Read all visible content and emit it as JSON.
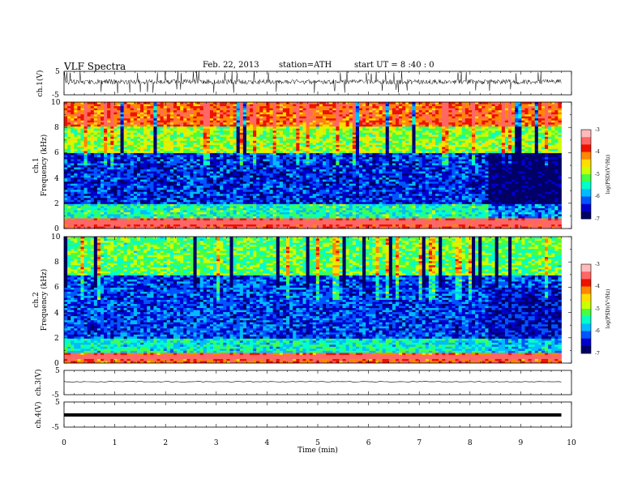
{
  "header": {
    "title": "VLF  Spectra",
    "date": "Feb. 22, 2013",
    "station": "station=ATH",
    "start": "start  UT  =    8  :40 : 0"
  },
  "x_axis": {
    "label": "Time  (min)",
    "range": [
      0,
      10
    ],
    "ticks": [
      "0",
      "1",
      "2",
      "3",
      "4",
      "5",
      "6",
      "7",
      "8",
      "9",
      "10"
    ],
    "data_end": 9.8
  },
  "panels": {
    "ch1_wave": {
      "ylabel": "ch.1(V)",
      "ticks": [
        "5",
        "-5"
      ],
      "range": [
        -5,
        5
      ],
      "trace": "fluctuating waveform near 0 with frequent spikes"
    },
    "ch1_spec": {
      "ylabel_a": "ch.1",
      "ylabel_b": "Frequency  (kHz)",
      "ticks": [
        "0",
        "2",
        "4",
        "6",
        "8",
        "10"
      ],
      "range_khz": [
        0,
        10
      ]
    },
    "ch2_spec": {
      "ylabel_a": "ch.2",
      "ylabel_b": "Frequency  (kHz)",
      "ticks": [
        "0",
        "2",
        "4",
        "6",
        "8",
        "10"
      ],
      "range_khz": [
        0,
        10
      ]
    },
    "ch3_wave": {
      "ylabel": "ch.3(V)",
      "ticks": [
        "5",
        "-5"
      ],
      "range": [
        -5,
        5
      ],
      "trace": "thin line near 0"
    },
    "ch4_wave": {
      "ylabel": "ch.4(V)",
      "ticks": [
        "5",
        "-5"
      ],
      "range": [
        -5,
        5
      ],
      "trace": "thick band near 0"
    }
  },
  "colorbar": {
    "label": "log(PSD)(V²/Hz)",
    "ticks": [
      "-3",
      "-4",
      "-5",
      "-6",
      "-7"
    ],
    "range": [
      -7,
      -3
    ],
    "colors": [
      "#000066",
      "#0000cc",
      "#0055ff",
      "#00bbff",
      "#00ffcc",
      "#44ff44",
      "#ccff00",
      "#ffdd00",
      "#ff8800",
      "#ee1100",
      "#ff6666",
      "#ffbbbb"
    ]
  },
  "chart_data": {
    "type": "heatmap",
    "title": "VLF  Spectra",
    "xlabel": "Time  (min)",
    "xlim": [
      0,
      10
    ],
    "zlim": [
      -7,
      -3
    ],
    "series": [
      {
        "name": "ch.1",
        "ylabel": "Frequency  (kHz)",
        "ylim": [
          0,
          10
        ],
        "description": "Broadband VLF spectrogram; log(PSD) approx. -4 to -3 above 6 kHz with sferic spikes, approx. -6.5 between 2 and 6 kHz, strong line near 0.5 kHz; power drops after 8.3 min",
        "bands_khz": [
          [
            0,
            0.8,
            -3.3
          ],
          [
            0.8,
            2.0,
            -5.3
          ],
          [
            2.0,
            6.0,
            -6.3
          ],
          [
            6.0,
            8.0,
            -4.8
          ],
          [
            8.0,
            10.0,
            -3.7
          ]
        ]
      },
      {
        "name": "ch.2",
        "ylabel": "Frequency  (kHz)",
        "ylim": [
          0,
          10
        ],
        "description": "Broadband VLF spectrogram; log(PSD) approx. -5 above 7 kHz, approx. -6.3 between 2 and 7 kHz, strong line near 0.8 kHz after 8.3 min",
        "bands_khz": [
          [
            0,
            0.8,
            -3.6
          ],
          [
            0.8,
            2.0,
            -5.4
          ],
          [
            2.0,
            7.0,
            -6.2
          ],
          [
            7.0,
            10.0,
            -5.0
          ]
        ]
      }
    ]
  }
}
